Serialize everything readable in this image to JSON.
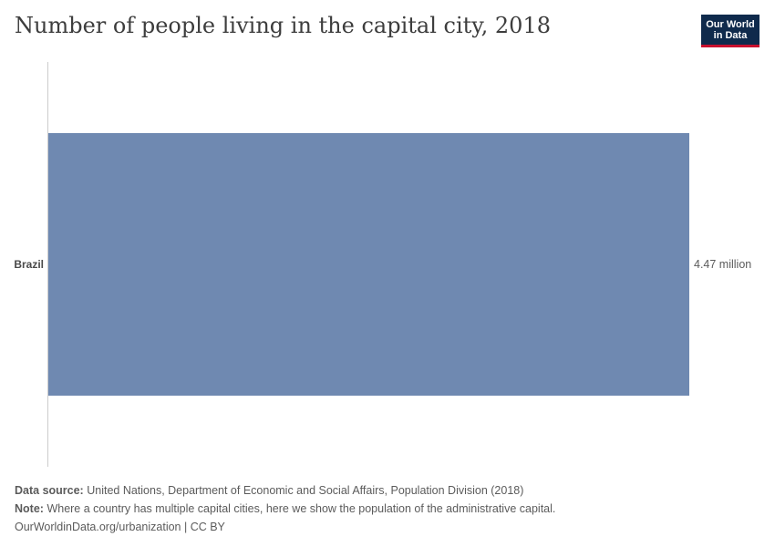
{
  "title": "Number of people living in the capital city, 2018",
  "logo": {
    "line1": "Our World",
    "line2": "in Data",
    "bg_color": "#0f2a4c",
    "accent_color": "#c8102e"
  },
  "chart_data": {
    "type": "bar",
    "orientation": "horizontal",
    "categories": [
      "Brazil"
    ],
    "values": [
      4470000
    ],
    "value_labels": [
      "4.47 million"
    ],
    "bar_color": "#6f89b1",
    "xlim": [
      0,
      4470000
    ],
    "grid": false
  },
  "footer": {
    "source_label": "Data source:",
    "source_text": "United Nations, Department of Economic and Social Affairs, Population Division (2018)",
    "note_label": "Note:",
    "note_text": "Where a country has multiple capital cities, here we show the population of the administrative capital.",
    "url": "OurWorldinData.org/urbanization | CC BY"
  }
}
